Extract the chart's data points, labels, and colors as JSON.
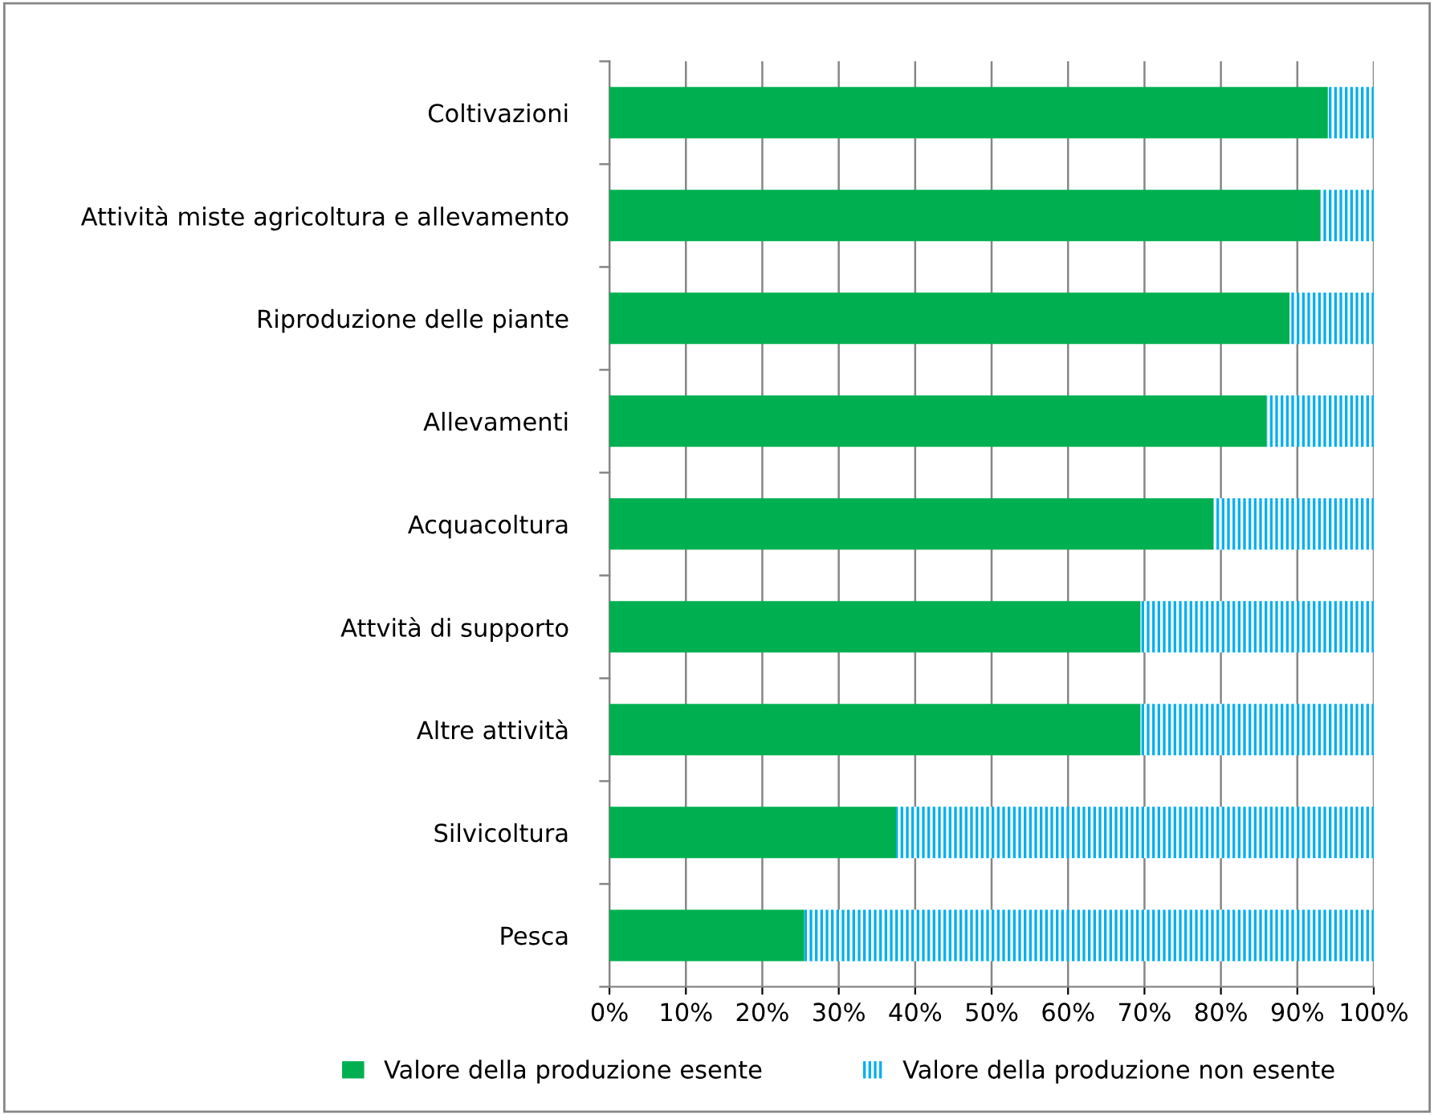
{
  "chart_data": {
    "type": "bar",
    "orientation": "horizontal",
    "stacked": true,
    "categories": [
      "Coltivazioni",
      "Attività miste agricoltura e allevamento",
      "Riproduzione delle piante",
      "Allevamenti",
      "Acquacoltura",
      "Attvità di supporto",
      "Altre attività",
      "Silvicoltura",
      "Pesca"
    ],
    "series": [
      {
        "name": "Valore della produzione esente",
        "color": "#00b050",
        "values": [
          94,
          93,
          89,
          86,
          79,
          69.5,
          69.5,
          37.5,
          25.5
        ]
      },
      {
        "name": "Valore della produzione non esente",
        "color": "#00b0f0",
        "values": [
          6,
          7,
          11,
          14,
          21,
          30.5,
          30.5,
          62.5,
          74.5
        ]
      }
    ],
    "xlim": [
      0,
      100
    ],
    "xticks": [
      {
        "value": 0,
        "label": "0%"
      },
      {
        "value": 10,
        "label": "10%"
      },
      {
        "value": 20,
        "label": "20%"
      },
      {
        "value": 30,
        "label": "30%"
      },
      {
        "value": 40,
        "label": "40%"
      },
      {
        "value": 50,
        "label": "50%"
      },
      {
        "value": 60,
        "label": "60%"
      },
      {
        "value": 70,
        "label": "70%"
      },
      {
        "value": 80,
        "label": "80%"
      },
      {
        "value": 90,
        "label": "90%"
      },
      {
        "value": 100,
        "label": "100%"
      }
    ],
    "grid": "x",
    "legend": "bottom"
  }
}
